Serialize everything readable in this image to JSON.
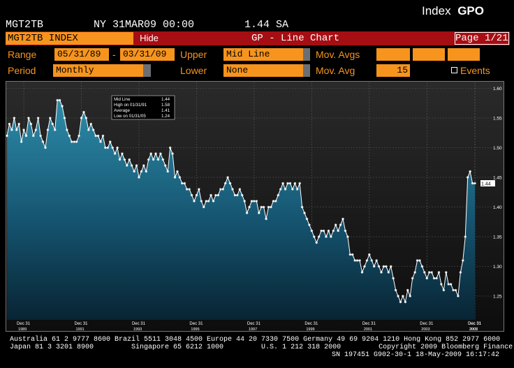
{
  "header": {
    "ticker": "MGT2TB",
    "quote": "NY 31MAR09 00:00",
    "value": "1.44 SA",
    "index_label": "Index",
    "function_code": "GPO"
  },
  "toolbar": {
    "security_field": "MGT2TB INDEX",
    "hide_label": "Hide",
    "chart_title": "GP - Line Chart",
    "page_indicator": "Page 1/21"
  },
  "form": {
    "range_label": "Range",
    "range_start": "05/31/89",
    "range_sep": "-",
    "range_end": "03/31/09",
    "upper_label": "Upper",
    "upper_value": "Mid Line",
    "mov_avgs_label": "Mov. Avgs",
    "mov_avgs_values": [
      "",
      "",
      ""
    ],
    "period_label": "Period",
    "period_value": "Monthly",
    "lower_label": "Lower",
    "lower_value": "None",
    "mov_avg_label": "Mov. Avg",
    "mov_avg_value": "15",
    "events_label": "Events"
  },
  "legend_box": {
    "line1": "Mid Line",
    "val1": "1.44",
    "line2": "High on 01/31/91",
    "val2": "1.58",
    "line3": "Average",
    "val3": "1.41",
    "line4": "Low on 01/31/05",
    "val4": "1.24"
  },
  "chart_data": {
    "type": "area",
    "series": [
      {
        "name": "Mid Line",
        "values": [
          1.52,
          1.54,
          1.53,
          1.55,
          1.53,
          1.54,
          1.51,
          1.53,
          1.52,
          1.55,
          1.54,
          1.52,
          1.53,
          1.55,
          1.52,
          1.51,
          1.5,
          1.53,
          1.55,
          1.54,
          1.53,
          1.58,
          1.58,
          1.57,
          1.55,
          1.53,
          1.52,
          1.51,
          1.51,
          1.51,
          1.52,
          1.55,
          1.56,
          1.55,
          1.53,
          1.54,
          1.53,
          1.52,
          1.52,
          1.51,
          1.52,
          1.5,
          1.5,
          1.51,
          1.5,
          1.49,
          1.5,
          1.48,
          1.49,
          1.48,
          1.47,
          1.48,
          1.47,
          1.46,
          1.47,
          1.45,
          1.46,
          1.47,
          1.46,
          1.48,
          1.49,
          1.48,
          1.49,
          1.48,
          1.49,
          1.48,
          1.47,
          1.46,
          1.5,
          1.49,
          1.45,
          1.46,
          1.45,
          1.44,
          1.44,
          1.43,
          1.43,
          1.42,
          1.41,
          1.42,
          1.43,
          1.41,
          1.4,
          1.41,
          1.41,
          1.42,
          1.41,
          1.42,
          1.42,
          1.43,
          1.43,
          1.44,
          1.45,
          1.44,
          1.43,
          1.42,
          1.42,
          1.43,
          1.42,
          1.41,
          1.39,
          1.4,
          1.41,
          1.41,
          1.41,
          1.39,
          1.4,
          1.4,
          1.38,
          1.4,
          1.4,
          1.41,
          1.41,
          1.42,
          1.43,
          1.44,
          1.43,
          1.44,
          1.44,
          1.43,
          1.44,
          1.43,
          1.44,
          1.4,
          1.39,
          1.38,
          1.37,
          1.36,
          1.35,
          1.34,
          1.35,
          1.36,
          1.36,
          1.35,
          1.36,
          1.35,
          1.36,
          1.37,
          1.36,
          1.37,
          1.38,
          1.36,
          1.35,
          1.32,
          1.32,
          1.31,
          1.31,
          1.31,
          1.29,
          1.3,
          1.31,
          1.32,
          1.31,
          1.3,
          1.31,
          1.3,
          1.29,
          1.3,
          1.3,
          1.29,
          1.3,
          1.28,
          1.26,
          1.25,
          1.24,
          1.25,
          1.24,
          1.26,
          1.25,
          1.28,
          1.29,
          1.31,
          1.31,
          1.3,
          1.29,
          1.28,
          1.29,
          1.29,
          1.28,
          1.28,
          1.29,
          1.27,
          1.26,
          1.29,
          1.27,
          1.27,
          1.26,
          1.26,
          1.25,
          1.29,
          1.31,
          1.35,
          1.45,
          1.46,
          1.44,
          1.44
        ]
      }
    ],
    "x_tick_labels": [
      "Dec 31",
      "Dec 31",
      "Dec 31",
      "Dec 31",
      "Dec 31",
      "Dec 31",
      "Dec 31",
      "Dec 31",
      "Dec 31",
      "Dec 31"
    ],
    "x_year_labels": [
      "1989",
      "1991",
      "1993",
      "1995",
      "1997",
      "1999",
      "2001",
      "2003",
      "2005",
      "2007"
    ],
    "y_ticks": [
      "1.60",
      "1.55",
      "1.50",
      "1.45",
      "1.40",
      "1.35",
      "1.30",
      "1.25"
    ],
    "ylim": [
      1.21,
      1.61
    ],
    "last_value_label": "1.44",
    "grid": true,
    "colors": {
      "area_top": "#2c8aa8",
      "area_bottom": "#0a2d3e",
      "line": "#ffffff",
      "bg": "#1b1b1b"
    }
  },
  "footer": {
    "line1": "Australia 61 2 9777 8600 Brazil 5511 3048 4500 Europe 44 20 7330 7500 Germany 49 69 9204 1210 Hong Kong 852 2977 6000",
    "line2": "Japan 81 3 3201 8900         Singapore 65 6212 1000         U.S. 1 212 318 2000         Copyright 2009 Bloomberg Finance L.P.",
    "line3": "SN 197451 G902-30-1 18-May-2009 16:17:42"
  },
  "colors": {
    "accent": "#f7941d",
    "toolbar_red": "#a50e13"
  }
}
